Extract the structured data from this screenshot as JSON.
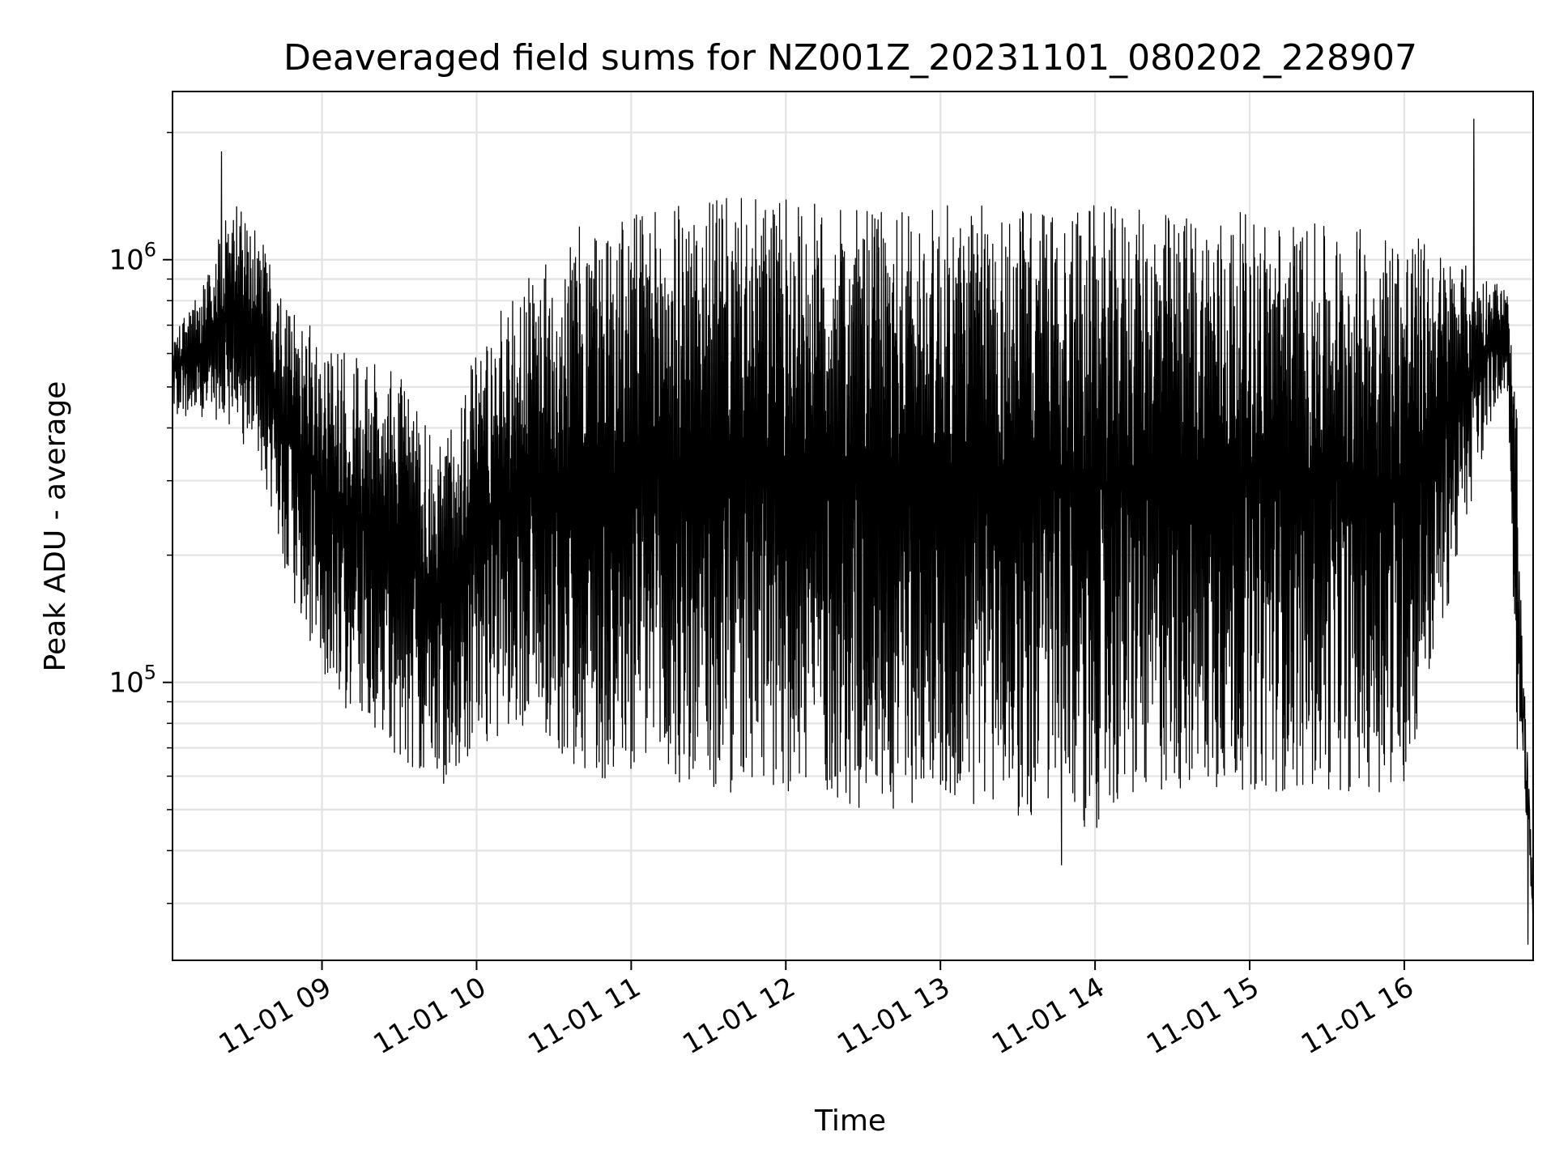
{
  "chart_data": {
    "type": "line",
    "title": "Deaveraged field sums for NZ001Z_20231101_080202_228907",
    "xlabel": "Time",
    "ylabel": "Peak ADU - average",
    "yscale": "log",
    "ylim": [
      22000,
      2500000
    ],
    "xlim": [
      "11-01 08:02",
      "11-01 16:50"
    ],
    "grid": true,
    "x_ticks": [
      "11-01 09",
      "11-01 10",
      "11-01 11",
      "11-01 12",
      "11-01 13",
      "11-01 14",
      "11-01 15",
      "11-01 16"
    ],
    "y_ticks": [
      {
        "base": "10",
        "exp": "5",
        "value": 100000
      },
      {
        "base": "10",
        "exp": "6",
        "value": 1000000
      }
    ],
    "series": [
      {
        "line_color": "#000000",
        "envelope": [
          {
            "time": "11-01 08:02",
            "low": 430000,
            "high": 650000
          },
          {
            "time": "11-01 08:15",
            "low": 420000,
            "high": 900000
          },
          {
            "time": "11-01 08:25",
            "low": 380000,
            "high": 1400000
          },
          {
            "time": "11-01 08:35",
            "low": 350000,
            "high": 1200000
          },
          {
            "time": "11-01 08:45",
            "low": 180000,
            "high": 800000
          },
          {
            "time": "11-01 08:55",
            "low": 120000,
            "high": 700000
          },
          {
            "time": "11-01 09:10",
            "low": 85000,
            "high": 600000
          },
          {
            "time": "11-01 09:30",
            "low": 65000,
            "high": 550000
          },
          {
            "time": "11-01 09:45",
            "low": 55000,
            "high": 350000
          },
          {
            "time": "11-01 10:00",
            "low": 70000,
            "high": 650000
          },
          {
            "time": "11-01 10:20",
            "low": 80000,
            "high": 900000
          },
          {
            "time": "11-01 10:40",
            "low": 60000,
            "high": 1200000
          },
          {
            "time": "11-01 11:00",
            "low": 55000,
            "high": 1300000
          },
          {
            "time": "11-01 11:30",
            "low": 50000,
            "high": 1400000
          },
          {
            "time": "11-01 12:00",
            "low": 55000,
            "high": 1400000
          },
          {
            "time": "11-01 12:30",
            "low": 50000,
            "high": 1300000
          },
          {
            "time": "11-01 13:00",
            "low": 50000,
            "high": 1350000
          },
          {
            "time": "11-01 13:30",
            "low": 48000,
            "high": 1350000
          },
          {
            "time": "11-01 14:00",
            "low": 45000,
            "high": 1350000
          },
          {
            "time": "11-01 14:30",
            "low": 55000,
            "high": 1300000
          },
          {
            "time": "11-01 15:00",
            "low": 55000,
            "high": 1300000
          },
          {
            "time": "11-01 15:30",
            "low": 55000,
            "high": 1200000
          },
          {
            "time": "11-01 16:00",
            "low": 55000,
            "high": 1200000
          },
          {
            "time": "11-01 16:20",
            "low": 180000,
            "high": 1000000
          },
          {
            "time": "11-01 16:35",
            "low": 450000,
            "high": 900000
          },
          {
            "time": "11-01 16:40",
            "low": 500000,
            "high": 850000
          },
          {
            "time": "11-01 16:44",
            "low": 60000,
            "high": 400000
          },
          {
            "time": "11-01 16:50",
            "low": 25000,
            "high": 35000
          }
        ],
        "notable_points": [
          {
            "time": "11-01 08:21",
            "value": 1800000
          },
          {
            "time": "11-01 16:27",
            "value": 2150000
          },
          {
            "time": "11-01 13:47",
            "value": 37000
          },
          {
            "time": "11-01 16:48",
            "value": 24000
          }
        ]
      }
    ]
  }
}
